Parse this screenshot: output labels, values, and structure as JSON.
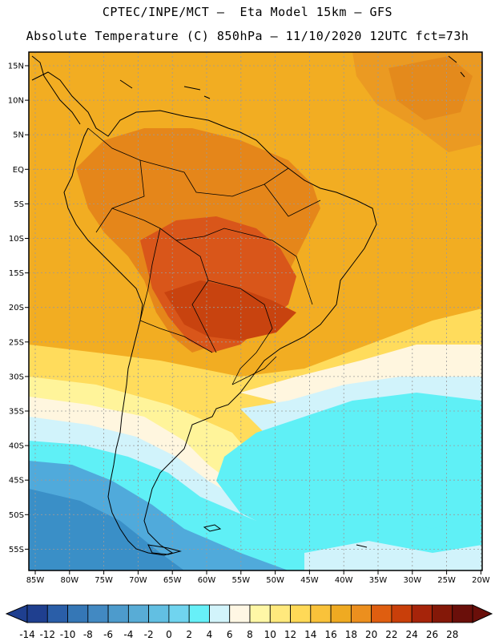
{
  "header": {
    "line1": "CPTEC/INPE/MCT –  Eta Model 15km – GFS",
    "line2": "Absolute Temperature (C) 850hPa – 11/10/2020 12UTC fct=73h"
  },
  "axes": {
    "lat_labels": [
      "15N",
      "10N",
      "5N",
      "EQ",
      "5S",
      "10S",
      "15S",
      "20S",
      "25S",
      "30S",
      "35S",
      "40S",
      "45S",
      "50S",
      "55S"
    ],
    "lon_labels": [
      "85W",
      "80W",
      "75W",
      "70W",
      "65W",
      "60W",
      "55W",
      "50W",
      "45W",
      "40W",
      "35W",
      "30W",
      "25W",
      "20W"
    ]
  },
  "colorbar": {
    "labels": [
      "-14",
      "-12",
      "-10",
      "-8",
      "-6",
      "-4",
      "-2",
      "0",
      "2",
      "4",
      "6",
      "8",
      "10",
      "12",
      "14",
      "16",
      "18",
      "20",
      "22",
      "24",
      "26",
      "28"
    ],
    "colors": [
      "#1f3f8f",
      "#2a5ea8",
      "#3577b6",
      "#4289c2",
      "#4d9bcc",
      "#58acd6",
      "#62bfe2",
      "#70d4ef",
      "#67f0f8",
      "#d2f4fb",
      "#fff7e4",
      "#fff7a6",
      "#ffe97d",
      "#ffd957",
      "#f9c23a",
      "#efaa22",
      "#ec8f1e",
      "#df5e10",
      "#c93f0a",
      "#a6240a",
      "#841808",
      "#6a0f0a"
    ]
  },
  "map": {
    "colors": {
      "deep_blue": "#3a8fc7",
      "blue": "#50aadb",
      "cyan": "#5ff0f6",
      "light_cyan": "#d1f3fb",
      "cream": "#fff6df",
      "light_yellow": "#fff49a",
      "yellow": "#ffdc5c",
      "gold": "#f6b62c",
      "orange": "#eb9a22",
      "dark_orange": "#e07a16",
      "red_orange": "#d9561a",
      "coast": "#000000"
    }
  }
}
